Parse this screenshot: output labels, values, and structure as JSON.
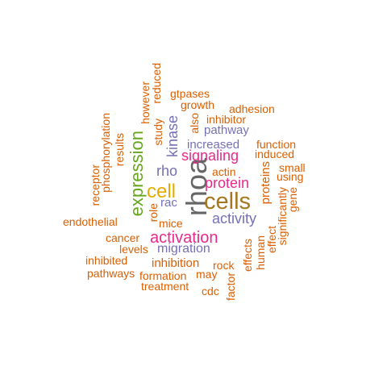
{
  "words": [
    "rhoa",
    "cells",
    "cell",
    "expression",
    "activation",
    "signaling",
    "protein",
    "activity",
    "kinase",
    "rho",
    "rac",
    "migration",
    "inhibition",
    "increased",
    "pathway",
    "actin",
    "proteins",
    "role",
    "mice",
    "cancer",
    "levels",
    "endothelial",
    "phosphorylation",
    "receptor",
    "results",
    "study",
    "however",
    "reduced",
    "gtpases",
    "growth",
    "also",
    "inhibitor",
    "adhesion",
    "function",
    "induced",
    "small",
    "using",
    "gene",
    "significantly",
    "effect",
    "human",
    "effects",
    "rock",
    "may",
    "factor",
    "cdc",
    "formation",
    "treatment",
    "pathways",
    "inhibited"
  ],
  "colors": {
    "orange": "#d95f02",
    "purple": "#7570b3",
    "magenta": "#e7298a",
    "green": "#66a61e",
    "gold": "#e6ab02",
    "brown": "#a6761d",
    "gray": "#666666"
  }
}
